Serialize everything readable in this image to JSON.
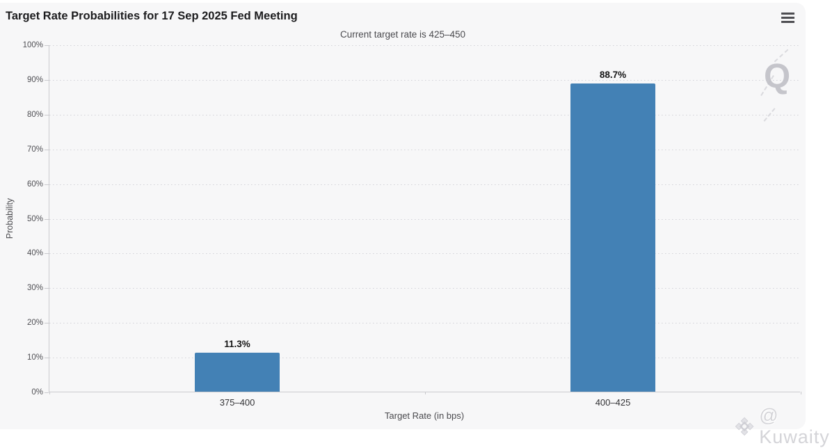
{
  "header": {
    "title": "Target Rate Probabilities for 17 Sep 2025 Fed Meeting",
    "subtitle": "Current target rate is 425–450",
    "menu_icon": "hamburger-menu-icon"
  },
  "chart_data": {
    "type": "bar",
    "title": "Target Rate Probabilities for 17 Sep 2025 Fed Meeting",
    "subtitle": "Current target rate is 425–450",
    "categories": [
      "375–400",
      "400–425"
    ],
    "values": [
      11.3,
      88.7
    ],
    "data_labels": [
      "11.3%",
      "88.7%"
    ],
    "xlabel": "Target Rate (in bps)",
    "ylabel": "Probability",
    "ylim": [
      0,
      100
    ],
    "ytick_step": 10,
    "ytick_labels": [
      "0%",
      "10%",
      "20%",
      "30%",
      "40%",
      "50%",
      "60%",
      "70%",
      "80%",
      "90%",
      "100%"
    ],
    "grid": "dotted horizontal gridlines, legend off",
    "bar_color": "#4381b5",
    "card_background": "#f7f7f8",
    "axis_line_color": "#c9c9cd"
  },
  "watermarks": {
    "plot_watermark": "Q",
    "credit": "@ Kuwaity",
    "credit_icon": "diamond-logo"
  }
}
